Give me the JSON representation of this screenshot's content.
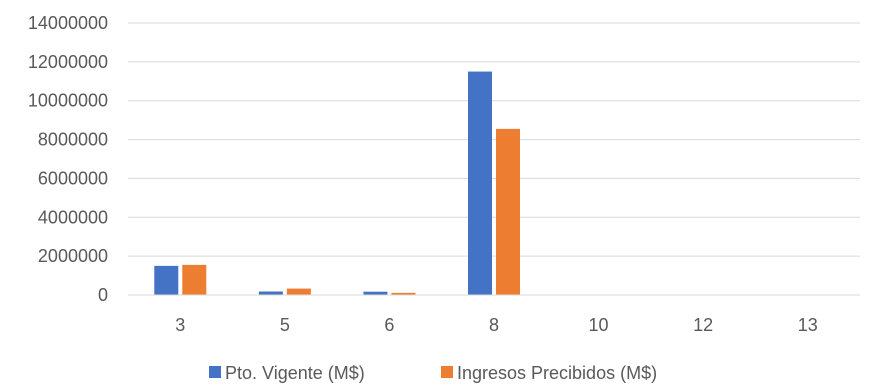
{
  "chart_data": {
    "type": "bar",
    "title": "",
    "xlabel": "",
    "ylabel": "",
    "categories": [
      "3",
      "5",
      "6",
      "8",
      "10",
      "12",
      "13"
    ],
    "series": [
      {
        "name": "Pto. Vigente (M$)",
        "color": "#4472C4",
        "values": [
          1500000,
          180000,
          170000,
          11500000,
          0,
          0,
          0
        ]
      },
      {
        "name": "Ingresos Precibidos (M$)",
        "color": "#ED7D31",
        "values": [
          1550000,
          330000,
          110000,
          8550000,
          0,
          0,
          0
        ]
      }
    ],
    "ylim": [
      0,
      14000000
    ],
    "yticks": [
      "0",
      "2000000",
      "4000000",
      "6000000",
      "8000000",
      "10000000",
      "12000000",
      "14000000"
    ],
    "grid": true,
    "legend_position": "bottom",
    "gridline_color": "#D9D9D9"
  }
}
